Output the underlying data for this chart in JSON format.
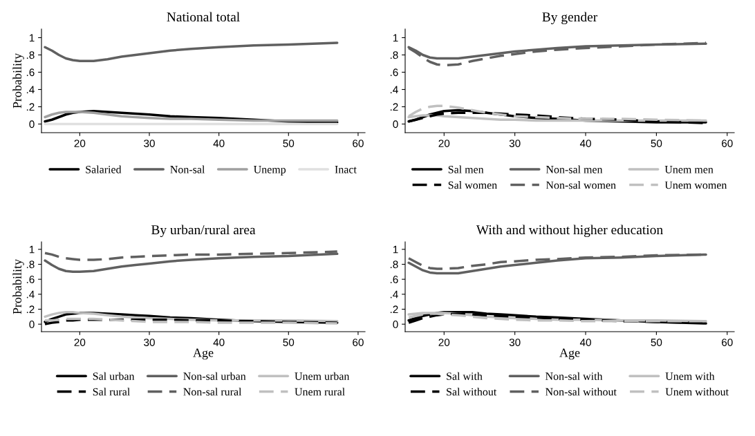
{
  "chart_data": [
    {
      "type": "line",
      "title": "National total",
      "ylabel": "Probability",
      "x": [
        15,
        16,
        17,
        18,
        19,
        20,
        22,
        24,
        26,
        28,
        30,
        33,
        36,
        40,
        45,
        50,
        57
      ],
      "xlim": [
        14.5,
        61
      ],
      "ylim": [
        -0.1,
        1.1
      ],
      "xticks": [
        20,
        30,
        40,
        50,
        60
      ],
      "yticks": [
        {
          "value": 0,
          "label": "0"
        },
        {
          "value": 0.2,
          "label": ".2"
        },
        {
          "value": 0.4,
          "label": ".4"
        },
        {
          "value": 0.6,
          "label": ".6"
        },
        {
          "value": 0.8,
          "label": ".8"
        },
        {
          "value": 1,
          "label": "1"
        }
      ],
      "legend": "bottom",
      "grid": false,
      "series": [
        {
          "name": "Salaried",
          "color": "#000000",
          "line_style": "solid",
          "values": [
            0.03,
            0.05,
            0.08,
            0.11,
            0.13,
            0.14,
            0.15,
            0.14,
            0.13,
            0.12,
            0.11,
            0.09,
            0.08,
            0.07,
            0.05,
            0.03,
            0.02
          ]
        },
        {
          "name": "Non-sal",
          "color": "#606060",
          "line_style": "solid",
          "values": [
            0.89,
            0.85,
            0.8,
            0.76,
            0.74,
            0.73,
            0.73,
            0.75,
            0.78,
            0.8,
            0.82,
            0.85,
            0.87,
            0.89,
            0.91,
            0.92,
            0.94
          ]
        },
        {
          "name": "Unemp",
          "color": "#a0a0a0",
          "line_style": "solid",
          "values": [
            0.08,
            0.11,
            0.13,
            0.14,
            0.14,
            0.14,
            0.13,
            0.11,
            0.09,
            0.08,
            0.07,
            0.06,
            0.06,
            0.05,
            0.04,
            0.04,
            0.04
          ]
        },
        {
          "name": "Inact",
          "color": "#e0e0e0",
          "line_style": "solid",
          "values": [
            0,
            0,
            0,
            0,
            0,
            0,
            0,
            0,
            0,
            0,
            0,
            0,
            0,
            0,
            0,
            0,
            0
          ]
        }
      ]
    },
    {
      "type": "line",
      "title": "By gender",
      "x": [
        15,
        16,
        17,
        18,
        19,
        20,
        22,
        24,
        26,
        28,
        30,
        33,
        36,
        40,
        45,
        50,
        57
      ],
      "xlim": [
        14.5,
        61
      ],
      "ylim": [
        -0.1,
        1.1
      ],
      "xticks": [
        20,
        30,
        40,
        50,
        60
      ],
      "yticks": [
        {
          "value": 0,
          "label": "0"
        },
        {
          "value": 0.2,
          "label": ".2"
        },
        {
          "value": 0.4,
          "label": ".4"
        },
        {
          "value": 0.6,
          "label": ".6"
        },
        {
          "value": 0.8,
          "label": ".8"
        },
        {
          "value": 1,
          "label": "1"
        }
      ],
      "legend": "bottom",
      "grid": false,
      "series": [
        {
          "name": "Sal men",
          "color": "#000000",
          "line_style": "solid",
          "values": [
            0.03,
            0.05,
            0.08,
            0.11,
            0.13,
            0.15,
            0.16,
            0.15,
            0.13,
            0.11,
            0.09,
            0.07,
            0.06,
            0.04,
            0.03,
            0.02,
            0.02
          ]
        },
        {
          "name": "Non-sal men",
          "color": "#606060",
          "line_style": "solid",
          "values": [
            0.89,
            0.85,
            0.8,
            0.77,
            0.76,
            0.76,
            0.76,
            0.78,
            0.8,
            0.82,
            0.84,
            0.86,
            0.88,
            0.9,
            0.91,
            0.92,
            0.93
          ]
        },
        {
          "name": "Unem men",
          "color": "#c0c0c0",
          "line_style": "solid",
          "values": [
            0.08,
            0.09,
            0.1,
            0.1,
            0.1,
            0.09,
            0.08,
            0.07,
            0.06,
            0.05,
            0.05,
            0.04,
            0.04,
            0.04,
            0.04,
            0.04,
            0.04
          ]
        },
        {
          "name": "Sal women",
          "color": "#000000",
          "line_style": "dashed",
          "values": [
            0.03,
            0.05,
            0.07,
            0.09,
            0.11,
            0.12,
            0.13,
            0.13,
            0.13,
            0.12,
            0.11,
            0.1,
            0.08,
            0.06,
            0.05,
            0.03,
            0.01
          ]
        },
        {
          "name": "Non-sal women",
          "color": "#606060",
          "line_style": "dashed",
          "values": [
            0.88,
            0.83,
            0.77,
            0.72,
            0.69,
            0.68,
            0.69,
            0.73,
            0.76,
            0.79,
            0.81,
            0.84,
            0.86,
            0.88,
            0.9,
            0.92,
            0.94
          ]
        },
        {
          "name": "Unem women",
          "color": "#c0c0c0",
          "line_style": "dashed",
          "values": [
            0.09,
            0.14,
            0.18,
            0.2,
            0.21,
            0.21,
            0.19,
            0.16,
            0.13,
            0.11,
            0.09,
            0.08,
            0.07,
            0.06,
            0.06,
            0.05,
            0.04
          ]
        }
      ]
    },
    {
      "type": "line",
      "title": "By urban/rural area",
      "xlabel": "Age",
      "ylabel": "Probability",
      "x": [
        15,
        16,
        17,
        18,
        19,
        20,
        22,
        24,
        26,
        28,
        30,
        33,
        36,
        40,
        45,
        50,
        57
      ],
      "xlim": [
        14.5,
        61
      ],
      "ylim": [
        -0.1,
        1.1
      ],
      "xticks": [
        20,
        30,
        40,
        50,
        60
      ],
      "yticks": [
        {
          "value": 0,
          "label": "0"
        },
        {
          "value": 0.2,
          "label": ".2"
        },
        {
          "value": 0.4,
          "label": ".4"
        },
        {
          "value": 0.6,
          "label": ".6"
        },
        {
          "value": 0.8,
          "label": ".8"
        },
        {
          "value": 1,
          "label": "1"
        }
      ],
      "legend": "bottom",
      "grid": false,
      "series": [
        {
          "name": "Sal urban",
          "color": "#000000",
          "line_style": "solid",
          "values": [
            0.03,
            0.07,
            0.1,
            0.13,
            0.14,
            0.15,
            0.15,
            0.14,
            0.13,
            0.12,
            0.11,
            0.09,
            0.08,
            0.06,
            0.04,
            0.03,
            0.02
          ]
        },
        {
          "name": "Non-sal urban",
          "color": "#606060",
          "line_style": "solid",
          "values": [
            0.85,
            0.79,
            0.74,
            0.71,
            0.7,
            0.7,
            0.71,
            0.74,
            0.77,
            0.79,
            0.81,
            0.84,
            0.86,
            0.88,
            0.9,
            0.91,
            0.94
          ]
        },
        {
          "name": "Unem urban",
          "color": "#c0c0c0",
          "line_style": "solid",
          "values": [
            0.1,
            0.13,
            0.15,
            0.16,
            0.16,
            0.15,
            0.14,
            0.12,
            0.1,
            0.09,
            0.08,
            0.07,
            0.06,
            0.05,
            0.05,
            0.05,
            0.04
          ]
        },
        {
          "name": "Sal rural",
          "color": "#000000",
          "line_style": "dashed",
          "values": [
            0.0,
            0.02,
            0.03,
            0.05,
            0.05,
            0.06,
            0.06,
            0.06,
            0.06,
            0.06,
            0.06,
            0.06,
            0.05,
            0.05,
            0.04,
            0.03,
            0.02
          ]
        },
        {
          "name": "Non-sal rural",
          "color": "#606060",
          "line_style": "dashed",
          "values": [
            0.95,
            0.93,
            0.9,
            0.88,
            0.87,
            0.86,
            0.86,
            0.87,
            0.89,
            0.9,
            0.91,
            0.92,
            0.93,
            0.93,
            0.94,
            0.95,
            0.97
          ]
        },
        {
          "name": "Unem rural",
          "color": "#c0c0c0",
          "line_style": "dashed",
          "values": [
            0.05,
            0.05,
            0.06,
            0.07,
            0.07,
            0.07,
            0.07,
            0.06,
            0.05,
            0.04,
            0.03,
            0.03,
            0.03,
            0.02,
            0.02,
            0.02,
            0.01
          ]
        }
      ]
    },
    {
      "type": "line",
      "title": "With and without higher education",
      "xlabel": "Age",
      "x": [
        15,
        16,
        17,
        18,
        19,
        20,
        22,
        24,
        26,
        28,
        30,
        33,
        36,
        40,
        45,
        50,
        57
      ],
      "xlim": [
        14.5,
        61
      ],
      "ylim": [
        -0.1,
        1.1
      ],
      "xticks": [
        20,
        30,
        40,
        50,
        60
      ],
      "yticks": [
        {
          "value": 0,
          "label": "0"
        },
        {
          "value": 0.2,
          "label": ".2"
        },
        {
          "value": 0.4,
          "label": ".4"
        },
        {
          "value": 0.6,
          "label": ".6"
        },
        {
          "value": 0.8,
          "label": ".8"
        },
        {
          "value": 1,
          "label": "1"
        }
      ],
      "legend": "bottom",
      "grid": false,
      "series": [
        {
          "name": "Sal with",
          "color": "#000000",
          "line_style": "solid",
          "values": [
            0.05,
            0.08,
            0.11,
            0.13,
            0.15,
            0.16,
            0.16,
            0.16,
            0.14,
            0.13,
            0.12,
            0.1,
            0.09,
            0.07,
            0.05,
            0.03,
            0.01
          ]
        },
        {
          "name": "Non-sal with",
          "color": "#606060",
          "line_style": "solid",
          "values": [
            0.82,
            0.77,
            0.72,
            0.69,
            0.68,
            0.68,
            0.68,
            0.71,
            0.74,
            0.77,
            0.79,
            0.82,
            0.85,
            0.88,
            0.89,
            0.91,
            0.93
          ]
        },
        {
          "name": "Unem with",
          "color": "#c0c0c0",
          "line_style": "solid",
          "values": [
            0.13,
            0.14,
            0.15,
            0.15,
            0.15,
            0.15,
            0.14,
            0.12,
            0.1,
            0.09,
            0.08,
            0.07,
            0.06,
            0.06,
            0.05,
            0.05,
            0.04
          ]
        },
        {
          "name": "Sal without",
          "color": "#000000",
          "line_style": "dashed",
          "values": [
            0.02,
            0.05,
            0.08,
            0.1,
            0.12,
            0.13,
            0.14,
            0.13,
            0.12,
            0.11,
            0.1,
            0.09,
            0.07,
            0.06,
            0.04,
            0.03,
            0.02
          ]
        },
        {
          "name": "Non-sal without",
          "color": "#606060",
          "line_style": "dashed",
          "values": [
            0.88,
            0.83,
            0.78,
            0.75,
            0.74,
            0.74,
            0.75,
            0.78,
            0.8,
            0.83,
            0.84,
            0.86,
            0.87,
            0.89,
            0.9,
            0.92,
            0.93
          ]
        },
        {
          "name": "Unem without",
          "color": "#c0c0c0",
          "line_style": "dashed",
          "values": [
            0.09,
            0.11,
            0.13,
            0.14,
            0.14,
            0.13,
            0.12,
            0.1,
            0.08,
            0.07,
            0.06,
            0.05,
            0.05,
            0.04,
            0.04,
            0.04,
            0.04
          ]
        }
      ]
    }
  ]
}
